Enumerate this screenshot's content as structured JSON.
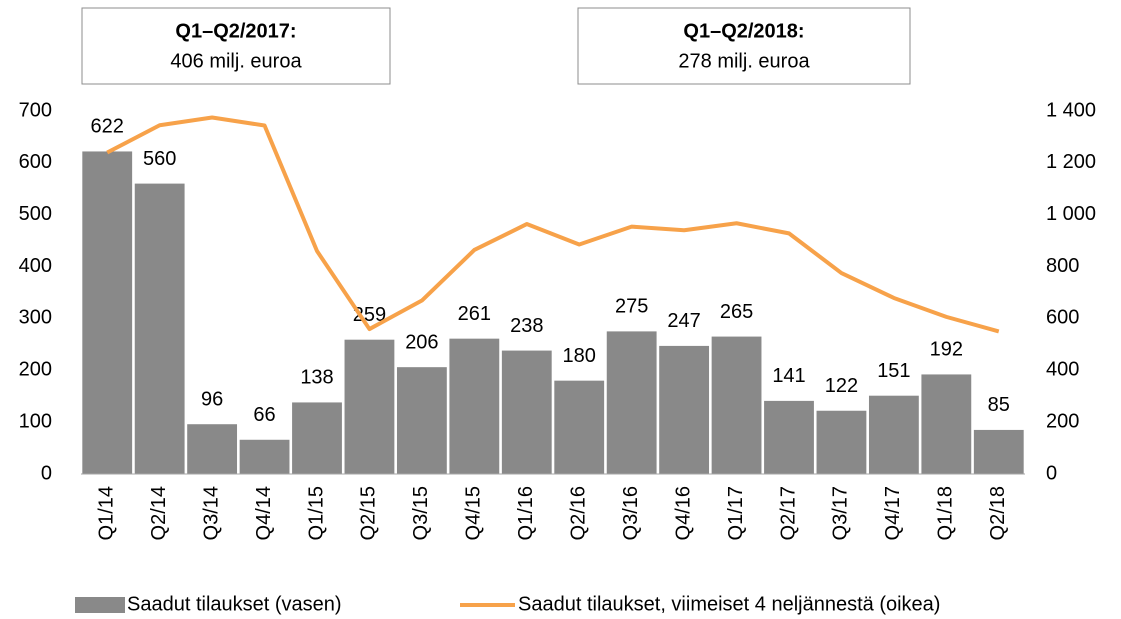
{
  "chart_data": {
    "type": "bar_line",
    "annotations": [
      {
        "title": "Q1–Q2/2017:",
        "text": "406 milj. euroa"
      },
      {
        "title": "Q1–Q2/2018:",
        "text": "278 milj. euroa"
      }
    ],
    "categories": [
      "Q1/14",
      "Q2/14",
      "Q3/14",
      "Q4/14",
      "Q1/15",
      "Q2/15",
      "Q3/15",
      "Q4/15",
      "Q1/16",
      "Q2/16",
      "Q3/16",
      "Q4/16",
      "Q1/17",
      "Q2/17",
      "Q3/17",
      "Q4/17",
      "Q1/18",
      "Q2/18"
    ],
    "series": [
      {
        "name": "Saadut tilaukset (vasen)",
        "type": "bar",
        "color": "#898989",
        "values": [
          622,
          560,
          96,
          66,
          138,
          259,
          206,
          261,
          238,
          180,
          275,
          247,
          265,
          141,
          122,
          151,
          192,
          85
        ]
      },
      {
        "name": "Saadut tilaukset, viimeiset 4 neljännestä (oikea)",
        "type": "line",
        "axis": "y2",
        "color": "#f7a24a",
        "values": [
          1240,
          1345,
          1375,
          1344,
          860,
          559,
          669,
          864,
          964,
          885,
          954,
          940,
          967,
          928,
          775,
          679,
          606,
          550
        ]
      }
    ],
    "ylim": [
      0,
      700
    ],
    "yticks": [
      0,
      100,
      200,
      300,
      400,
      500,
      600,
      700
    ],
    "y2lim": [
      0,
      1400
    ],
    "y2ticks": [
      0,
      200,
      400,
      600,
      800,
      {
        "value": 1000,
        "label": "1 000"
      },
      {
        "value": 1200,
        "label": "1 200"
      },
      {
        "value": 1400,
        "label": "1 400"
      }
    ],
    "grid": false,
    "legend": "bottom"
  }
}
